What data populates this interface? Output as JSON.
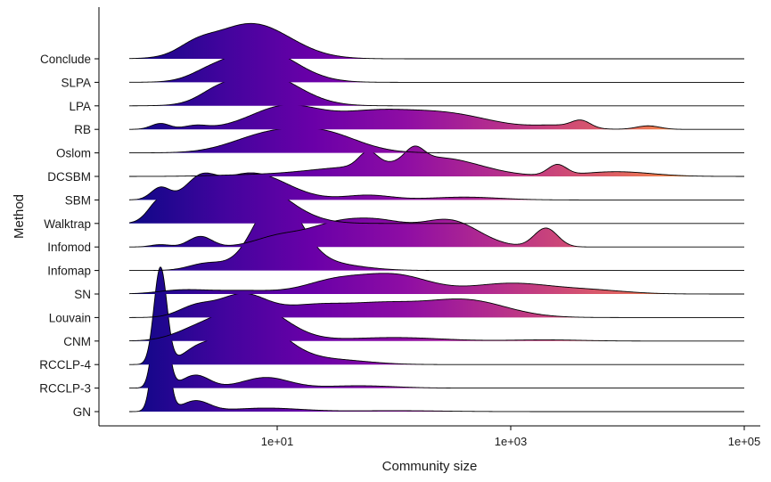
{
  "chart_data": {
    "type": "ridgeline",
    "xlabel": "Community size",
    "ylabel": "Method",
    "x_scale": "log10",
    "xlim": [
      0.5,
      100000
    ],
    "x_ticks": [
      {
        "value": 10,
        "label": "1e+01"
      },
      {
        "value": 1000,
        "label": "1e+03"
      },
      {
        "value": 100000,
        "label": "1e+05"
      }
    ],
    "fill_gradient": "plasma (dark purple at small sizes to yellow at large sizes)",
    "series": [
      {
        "name": "Conclude",
        "xmax": 100000,
        "peaks": [
          {
            "x": 2,
            "h": 0.35,
            "w": 0.15
          },
          {
            "x": 6,
            "h": 1.5,
            "w": 0.33
          }
        ]
      },
      {
        "name": "SLPA",
        "xmax": 100000,
        "peaks": [
          {
            "x": 2.5,
            "h": 0.2,
            "w": 0.15
          },
          {
            "x": 7,
            "h": 1.45,
            "w": 0.3
          }
        ]
      },
      {
        "name": "LPA",
        "xmax": 100000,
        "peaks": [
          {
            "x": 3,
            "h": 0.3,
            "w": 0.15
          },
          {
            "x": 7.5,
            "h": 1.35,
            "w": 0.3
          }
        ]
      },
      {
        "name": "RB",
        "xmax": 100000,
        "peaks": [
          {
            "x": 1,
            "h": 0.25,
            "w": 0.08
          },
          {
            "x": 2,
            "h": 0.15,
            "w": 0.1
          },
          {
            "x": 12,
            "h": 1.0,
            "w": 0.3
          },
          {
            "x": 60,
            "h": 0.55,
            "w": 0.3
          },
          {
            "x": 250,
            "h": 0.7,
            "w": 0.4
          },
          {
            "x": 2500,
            "h": 0.15,
            "w": 0.2
          },
          {
            "x": 4000,
            "h": 0.3,
            "w": 0.08
          },
          {
            "x": 15000,
            "h": 0.15,
            "w": 0.1
          }
        ]
      },
      {
        "name": "Oslom",
        "xmax": 100000,
        "peaks": [
          {
            "x": 8,
            "h": 0.7,
            "w": 0.3
          },
          {
            "x": 25,
            "h": 0.8,
            "w": 0.3
          }
        ]
      },
      {
        "name": "DCSBM",
        "xmax": 100000,
        "peaks": [
          {
            "x": 5,
            "h": 0.05,
            "w": 0.3
          },
          {
            "x": 40,
            "h": 0.35,
            "w": 0.4
          },
          {
            "x": 60,
            "h": 0.6,
            "w": 0.08
          },
          {
            "x": 150,
            "h": 0.55,
            "w": 0.08
          },
          {
            "x": 250,
            "h": 0.75,
            "w": 0.35
          },
          {
            "x": 2500,
            "h": 0.45,
            "w": 0.08
          },
          {
            "x": 8000,
            "h": 0.2,
            "w": 0.3
          }
        ]
      },
      {
        "name": "SBM",
        "xmax": 100000,
        "peaks": [
          {
            "x": 1,
            "h": 0.5,
            "w": 0.08
          },
          {
            "x": 2.2,
            "h": 0.7,
            "w": 0.12
          },
          {
            "x": 6,
            "h": 1.15,
            "w": 0.3
          },
          {
            "x": 60,
            "h": 0.2,
            "w": 0.2
          },
          {
            "x": 400,
            "h": 0.12,
            "w": 0.3
          }
        ]
      },
      {
        "name": "Walktrap",
        "xmax": 100000,
        "peaks": [
          {
            "x": 1,
            "h": 0.95,
            "w": 0.1
          },
          {
            "x": 2.2,
            "h": 1.35,
            "w": 0.15
          },
          {
            "x": 6,
            "h": 1.75,
            "w": 0.3
          }
        ]
      },
      {
        "name": "Infomod",
        "xmax": 100000,
        "peaks": [
          {
            "x": 1,
            "h": 0.1,
            "w": 0.08
          },
          {
            "x": 2.2,
            "h": 0.45,
            "w": 0.1
          },
          {
            "x": 10,
            "h": 0.4,
            "w": 0.2
          },
          {
            "x": 30,
            "h": 0.85,
            "w": 0.25
          },
          {
            "x": 80,
            "h": 0.9,
            "w": 0.25
          },
          {
            "x": 300,
            "h": 1.1,
            "w": 0.25
          },
          {
            "x": 2000,
            "h": 0.8,
            "w": 0.1
          }
        ]
      },
      {
        "name": "Infomap",
        "xmax": 100000,
        "peaks": [
          {
            "x": 2.5,
            "h": 0.3,
            "w": 0.15
          },
          {
            "x": 10,
            "h": 3.05,
            "w": 0.2
          },
          {
            "x": 25,
            "h": 0.3,
            "w": 0.3
          }
        ]
      },
      {
        "name": "SN",
        "xmax": 100000,
        "peaks": [
          {
            "x": 1.5,
            "h": 0.15,
            "w": 0.2
          },
          {
            "x": 5,
            "h": 0.15,
            "w": 0.3
          },
          {
            "x": 30,
            "h": 0.5,
            "w": 0.25
          },
          {
            "x": 100,
            "h": 0.8,
            "w": 0.3
          },
          {
            "x": 1000,
            "h": 0.45,
            "w": 0.35
          },
          {
            "x": 5000,
            "h": 0.15,
            "w": 0.3
          }
        ]
      },
      {
        "name": "Louvain",
        "xmax": 100000,
        "peaks": [
          {
            "x": 2,
            "h": 0.45,
            "w": 0.15
          },
          {
            "x": 5,
            "h": 0.95,
            "w": 0.2
          },
          {
            "x": 20,
            "h": 0.5,
            "w": 0.3
          },
          {
            "x": 80,
            "h": 0.5,
            "w": 0.3
          },
          {
            "x": 400,
            "h": 0.75,
            "w": 0.35
          }
        ]
      },
      {
        "name": "CNM",
        "xmax": 100000,
        "peaks": [
          {
            "x": 2,
            "h": 0.35,
            "w": 0.2
          },
          {
            "x": 6,
            "h": 1.55,
            "w": 0.28
          },
          {
            "x": 100,
            "h": 0.15,
            "w": 0.4
          },
          {
            "x": 2000,
            "h": 0.05,
            "w": 0.3
          }
        ]
      },
      {
        "name": "RCCLP-4",
        "xmax": 100000,
        "peaks": [
          {
            "x": 1,
            "h": 4.1,
            "w": 0.055
          },
          {
            "x": 2,
            "h": 0.4,
            "w": 0.12
          },
          {
            "x": 6,
            "h": 1.95,
            "w": 0.27
          },
          {
            "x": 30,
            "h": 0.2,
            "w": 0.3
          }
        ]
      },
      {
        "name": "RCCLP-3",
        "xmax": 100000,
        "peaks": [
          {
            "x": 1,
            "h": 4.55,
            "w": 0.055
          },
          {
            "x": 2,
            "h": 0.55,
            "w": 0.12
          },
          {
            "x": 8,
            "h": 0.45,
            "w": 0.2
          },
          {
            "x": 50,
            "h": 0.1,
            "w": 0.3
          }
        ]
      },
      {
        "name": "GN",
        "xmax": 100000,
        "peaks": [
          {
            "x": 1,
            "h": 5.7,
            "w": 0.055
          },
          {
            "x": 2,
            "h": 0.45,
            "w": 0.12
          },
          {
            "x": 8,
            "h": 0.15,
            "w": 0.3
          },
          {
            "x": 100,
            "h": 0.04,
            "w": 0.4
          }
        ]
      }
    ]
  }
}
